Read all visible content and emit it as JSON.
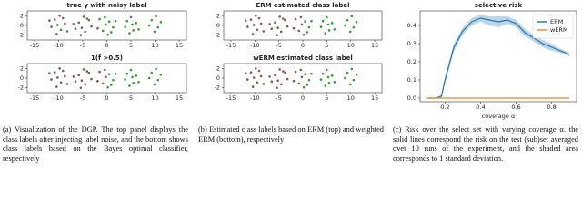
{
  "chart_data": [
    {
      "type": "scatter",
      "title": "true y with noisy label",
      "xlim": [
        -16.5,
        16.5
      ],
      "ylim": [
        -3,
        3
      ],
      "xticks": [
        -15,
        -10,
        -5,
        0,
        5,
        10,
        15
      ],
      "yticks": [
        -2,
        0,
        2
      ],
      "series": [
        {
          "color": "#8c564b",
          "x": [
            -10.8,
            -11.5,
            -9.8,
            -10.4,
            -8.7,
            -11.9,
            -9.1,
            -5.8,
            -4.5,
            -3.7,
            -6.5,
            -4.8,
            -5.4,
            -3.2,
            -6.9,
            -5.2,
            -1.9
          ],
          "y": [
            1.2,
            -0.3,
            2.0,
            -1.8,
            0.4,
            1.0,
            1.5,
            0.6,
            -1.3,
            1.1,
            -0.7,
            1.8,
            -2.0,
            -0.2,
            0.3,
            -0.5,
            -0.6
          ]
        },
        {
          "color": "#2ca02c",
          "x": [
            -9.5,
            -8.2,
            -10.2,
            -4.1,
            -0.8,
            0.5,
            1.3,
            -1.5,
            0.2,
            -0.4,
            1.8,
            0.9,
            -0.2,
            4.2,
            5.5,
            6.1,
            3.8,
            5.0,
            4.7,
            6.6,
            5.3,
            9.3,
            10.6,
            11.2,
            9.9,
            10.2,
            8.8
          ],
          "y": [
            -0.9,
            -1.2,
            0.1,
            1.4,
            -1.1,
            0.8,
            -0.4,
            1.3,
            -1.9,
            1.7,
            0.9,
            -1.4,
            0.2,
            0.9,
            -1.0,
            0.5,
            -0.3,
            1.7,
            -1.6,
            -0.8,
            0.2,
            1.1,
            -0.4,
            0.7,
            -1.3,
            1.9,
            0.0
          ]
        }
      ]
    },
    {
      "type": "scatter",
      "title": "1(f̂ >0.5)",
      "xlim": [
        -16.5,
        16.5
      ],
      "ylim": [
        -3,
        3
      ],
      "xticks": [
        -15,
        -10,
        -5,
        0,
        5,
        10,
        15
      ],
      "yticks": [
        -2,
        0,
        2
      ],
      "series": [
        {
          "color": "#8c564b",
          "x": [
            -10.8,
            -9.5,
            -8.7,
            -11.5,
            -9.8,
            -10.4,
            -8.2,
            -11.9,
            -9.1,
            -10.2,
            -5.8,
            -4.5,
            -3.7,
            -6.5,
            -4.8,
            -5.4,
            -3.2,
            -6.9,
            -4.1,
            -5.2,
            -0.8,
            -1.5,
            -0.4,
            -1.9,
            -0.2
          ],
          "y": [
            1.2,
            -0.9,
            0.4,
            -0.3,
            2.0,
            -1.8,
            -1.2,
            1.0,
            1.5,
            0.1,
            0.6,
            -1.3,
            1.1,
            -0.7,
            1.8,
            -2.0,
            -0.2,
            0.3,
            1.4,
            -0.5,
            -1.1,
            1.3,
            1.7,
            -0.6,
            0.2
          ]
        },
        {
          "color": "#2ca02c",
          "x": [
            0.5,
            1.3,
            0.2,
            1.8,
            0.9,
            4.2,
            5.5,
            6.1,
            3.8,
            5.0,
            4.7,
            6.6,
            5.3,
            9.3,
            10.6,
            11.2,
            9.9,
            10.2,
            8.8
          ],
          "y": [
            0.8,
            -0.4,
            -1.9,
            0.9,
            -1.4,
            0.9,
            -1.0,
            0.5,
            -0.3,
            1.7,
            -1.6,
            -0.8,
            0.2,
            1.1,
            -0.4,
            0.7,
            -1.3,
            1.9,
            0.0
          ]
        }
      ]
    },
    {
      "type": "scatter",
      "title": "ERM estimated class label",
      "xlim": [
        -16.5,
        16.5
      ],
      "ylim": [
        -3,
        3
      ],
      "xticks": [
        -15,
        -10,
        -5,
        0,
        5,
        10,
        15
      ],
      "yticks": [
        -2,
        0,
        2
      ],
      "series": [
        {
          "color": "#8c564b",
          "x": [
            -10.8,
            -9.5,
            -8.7,
            -11.5,
            -9.8,
            -10.4,
            -8.2,
            -11.9,
            -9.1,
            -10.2,
            -5.8,
            -4.5,
            -3.7,
            -6.5,
            -4.8,
            -5.4,
            -3.2,
            -6.9,
            -4.1,
            -5.2,
            -0.8,
            -1.5,
            -0.4,
            -1.9,
            -0.2,
            0.2
          ],
          "y": [
            1.2,
            -0.9,
            0.4,
            -0.3,
            2.0,
            -1.8,
            -1.2,
            1.0,
            1.5,
            0.1,
            0.6,
            -1.3,
            1.1,
            -0.7,
            1.8,
            -2.0,
            -0.2,
            0.3,
            1.4,
            -0.5,
            -1.1,
            1.3,
            1.7,
            -0.6,
            0.2,
            -1.9
          ]
        },
        {
          "color": "#2ca02c",
          "x": [
            0.5,
            1.3,
            1.8,
            0.9,
            4.2,
            5.5,
            6.1,
            3.8,
            5.0,
            4.7,
            6.6,
            5.3,
            9.3,
            10.6,
            11.2,
            9.9,
            10.2,
            8.8
          ],
          "y": [
            0.8,
            -0.4,
            0.9,
            -1.4,
            0.9,
            -1.0,
            0.5,
            -0.3,
            1.7,
            -1.6,
            -0.8,
            0.2,
            1.1,
            -0.4,
            0.7,
            -1.3,
            1.9,
            0.0
          ]
        }
      ]
    },
    {
      "type": "scatter",
      "title": "wERM estimated class label",
      "xlim": [
        -16.5,
        16.5
      ],
      "ylim": [
        -3,
        3
      ],
      "xticks": [
        -15,
        -10,
        -5,
        0,
        5,
        10,
        15
      ],
      "yticks": [
        -2,
        0,
        2
      ],
      "series": [
        {
          "color": "#8c564b",
          "x": [
            -10.8,
            -9.5,
            -8.7,
            -11.5,
            -9.8,
            -10.4,
            -8.2,
            -11.9,
            -9.1,
            -10.2,
            -5.8,
            -4.5,
            -3.7,
            -6.5,
            -4.8,
            -5.4,
            -3.2,
            -6.9,
            -4.1,
            -5.2,
            -0.8,
            -1.5,
            -0.4,
            -1.9,
            -0.2
          ],
          "y": [
            1.2,
            -0.9,
            0.4,
            -0.3,
            2.0,
            -1.8,
            -1.2,
            1.0,
            1.5,
            0.1,
            0.6,
            -1.3,
            1.1,
            -0.7,
            1.8,
            -2.0,
            -0.2,
            0.3,
            1.4,
            -0.5,
            -1.1,
            1.3,
            1.7,
            -0.6,
            0.2
          ]
        },
        {
          "color": "#2ca02c",
          "x": [
            0.5,
            1.3,
            0.2,
            1.8,
            0.9,
            4.2,
            5.5,
            6.1,
            3.8,
            5.0,
            4.7,
            6.6,
            5.3,
            9.3,
            10.6,
            11.2,
            9.9,
            10.2,
            8.8
          ],
          "y": [
            0.8,
            -0.4,
            -1.9,
            0.9,
            -1.4,
            0.9,
            -1.0,
            0.5,
            -0.3,
            1.7,
            -1.6,
            -0.8,
            0.2,
            1.1,
            -0.4,
            0.7,
            -1.3,
            1.9,
            0.0
          ]
        }
      ]
    },
    {
      "type": "line",
      "title": "selective risk",
      "x_label": "coverage α",
      "xlim": [
        0.06,
        0.94
      ],
      "ylim": [
        -0.02,
        0.48
      ],
      "xticks": [
        0.2,
        0.4,
        0.6,
        0.8
      ],
      "yticks": [
        {
          "value": 0,
          "label": "0.0"
        },
        0.1,
        0.2,
        0.3,
        0.4
      ],
      "legend": "upper right",
      "x": [
        0.1,
        0.15,
        0.18,
        0.2,
        0.25,
        0.3,
        0.35,
        0.4,
        0.45,
        0.5,
        0.55,
        0.6,
        0.65,
        0.7,
        0.75,
        0.8,
        0.85,
        0.9
      ],
      "series": [
        {
          "name": "ERM",
          "color": "#1f77b4",
          "values": [
            0,
            0,
            0.01,
            0.1,
            0.28,
            0.37,
            0.42,
            0.44,
            0.43,
            0.42,
            0.43,
            0.41,
            0.36,
            0.33,
            0.3,
            0.28,
            0.26,
            0.24
          ],
          "band_upper": [
            0,
            0,
            0.02,
            0.12,
            0.3,
            0.39,
            0.44,
            0.46,
            0.45,
            0.45,
            0.45,
            0.43,
            0.38,
            0.35,
            0.32,
            0.3,
            0.27,
            0.25
          ],
          "band_lower": [
            0,
            0,
            0,
            0.08,
            0.26,
            0.35,
            0.4,
            0.42,
            0.4,
            0.39,
            0.41,
            0.39,
            0.34,
            0.31,
            0.28,
            0.26,
            0.25,
            0.23
          ]
        },
        {
          "name": "wERM",
          "color": "#ff7f0e",
          "values": [
            0,
            0,
            0,
            0,
            0,
            0,
            0,
            0,
            0,
            0,
            0,
            0,
            0,
            0,
            0,
            0,
            0,
            0
          ]
        }
      ]
    }
  ],
  "captions": [
    "(a) Visualization of the DGP. The top panel displays the class labels after injecting label noise, and the bottom shows class labels based on the Bayes optimal classifier, respectively",
    "(b) Estimated class labels based on ERM (top) and weighted ERM (bottom), respectively",
    "(c) Risk over the select set with varying coverage α. the solid lines correspond the risk on the test (sub)set averaged over 10 runs of the experiment, and the shaded area corresponds to 1 standard deviation."
  ]
}
